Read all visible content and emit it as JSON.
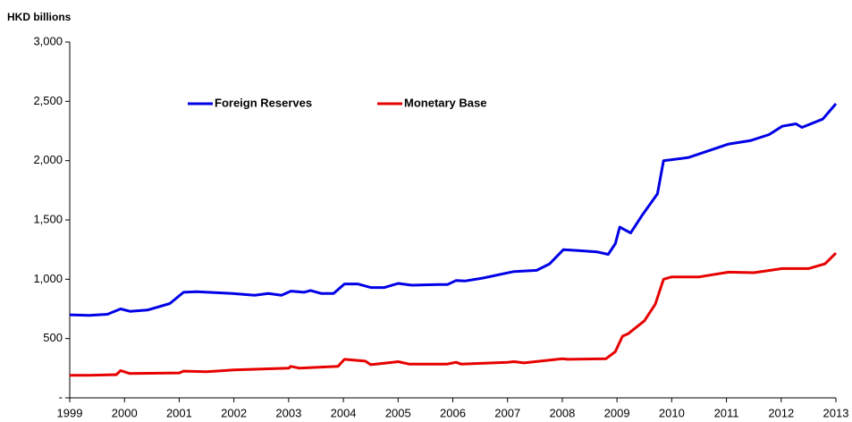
{
  "chart_data": {
    "type": "line",
    "y_label": "HKD billions",
    "xlim": [
      1999,
      2013
    ],
    "xticks": [
      1999,
      2000,
      2001,
      2002,
      2003,
      2004,
      2005,
      2006,
      2007,
      2008,
      2009,
      2010,
      2011,
      2012,
      2013
    ],
    "ylim": [
      0,
      3000
    ],
    "yticks": [
      {
        "value": 0,
        "label": "-"
      },
      500,
      {
        "value": 1000,
        "label": "1,000"
      },
      {
        "value": 1500,
        "label": "1,500"
      },
      {
        "value": 2000,
        "label": "2,000"
      },
      {
        "value": 2500,
        "label": "2,500"
      },
      {
        "value": 3000,
        "label": "3,000"
      }
    ],
    "grid": false,
    "series": [
      {
        "name": "Foreign Reserves",
        "color": "#0000e6",
        "x": [
          1999.0,
          1999.36,
          1999.69,
          1999.93,
          2000.1,
          2000.42,
          2000.83,
          2001.08,
          2001.32,
          2001.97,
          2002.38,
          2002.63,
          2002.87,
          2003.04,
          2003.28,
          2003.4,
          2003.6,
          2003.82,
          2004.02,
          2004.26,
          2004.5,
          2004.75,
          2005.0,
          2005.25,
          2005.73,
          2005.9,
          2006.06,
          2006.22,
          2006.55,
          2006.96,
          2007.12,
          2007.53,
          2007.77,
          2008.02,
          2008.35,
          2008.64,
          2008.84,
          2008.97,
          2009.05,
          2009.25,
          2009.46,
          2009.74,
          2009.85,
          2010.3,
          2010.72,
          2011.04,
          2011.45,
          2011.78,
          2012.02,
          2012.27,
          2012.38,
          2012.76,
          2013.0
        ],
        "values": [
          700,
          695,
          705,
          750,
          730,
          740,
          795,
          890,
          895,
          880,
          865,
          880,
          865,
          900,
          890,
          905,
          880,
          880,
          960,
          960,
          930,
          930,
          965,
          950,
          955,
          955,
          990,
          985,
          1010,
          1050,
          1065,
          1075,
          1130,
          1250,
          1240,
          1230,
          1210,
          1300,
          1440,
          1390,
          1540,
          1720,
          2000,
          2025,
          2090,
          2140,
          2170,
          2220,
          2290,
          2310,
          2280,
          2350,
          2480
        ]
      },
      {
        "name": "Monetary Base",
        "color": "#e60000",
        "x": [
          1999.0,
          1999.36,
          1999.85,
          1999.93,
          2000.1,
          2001.0,
          2001.08,
          2001.5,
          2002.0,
          2003.0,
          2003.04,
          2003.2,
          2003.9,
          2004.02,
          2004.4,
          2004.5,
          2004.9,
          2005.0,
          2005.2,
          2005.9,
          2006.06,
          2006.15,
          2007.0,
          2007.12,
          2007.3,
          2008.0,
          2008.1,
          2008.8,
          2008.97,
          2009.1,
          2009.2,
          2009.5,
          2009.7,
          2009.85,
          2010.0,
          2010.5,
          2011.04,
          2011.5,
          2012.02,
          2012.5,
          2012.8,
          2013.0
        ],
        "values": [
          190,
          190,
          195,
          230,
          205,
          210,
          225,
          220,
          235,
          250,
          265,
          250,
          265,
          325,
          310,
          280,
          300,
          305,
          285,
          285,
          300,
          285,
          300,
          305,
          295,
          330,
          325,
          330,
          390,
          520,
          540,
          650,
          790,
          1000,
          1020,
          1020,
          1060,
          1055,
          1090,
          1090,
          1130,
          1220
        ]
      }
    ]
  }
}
